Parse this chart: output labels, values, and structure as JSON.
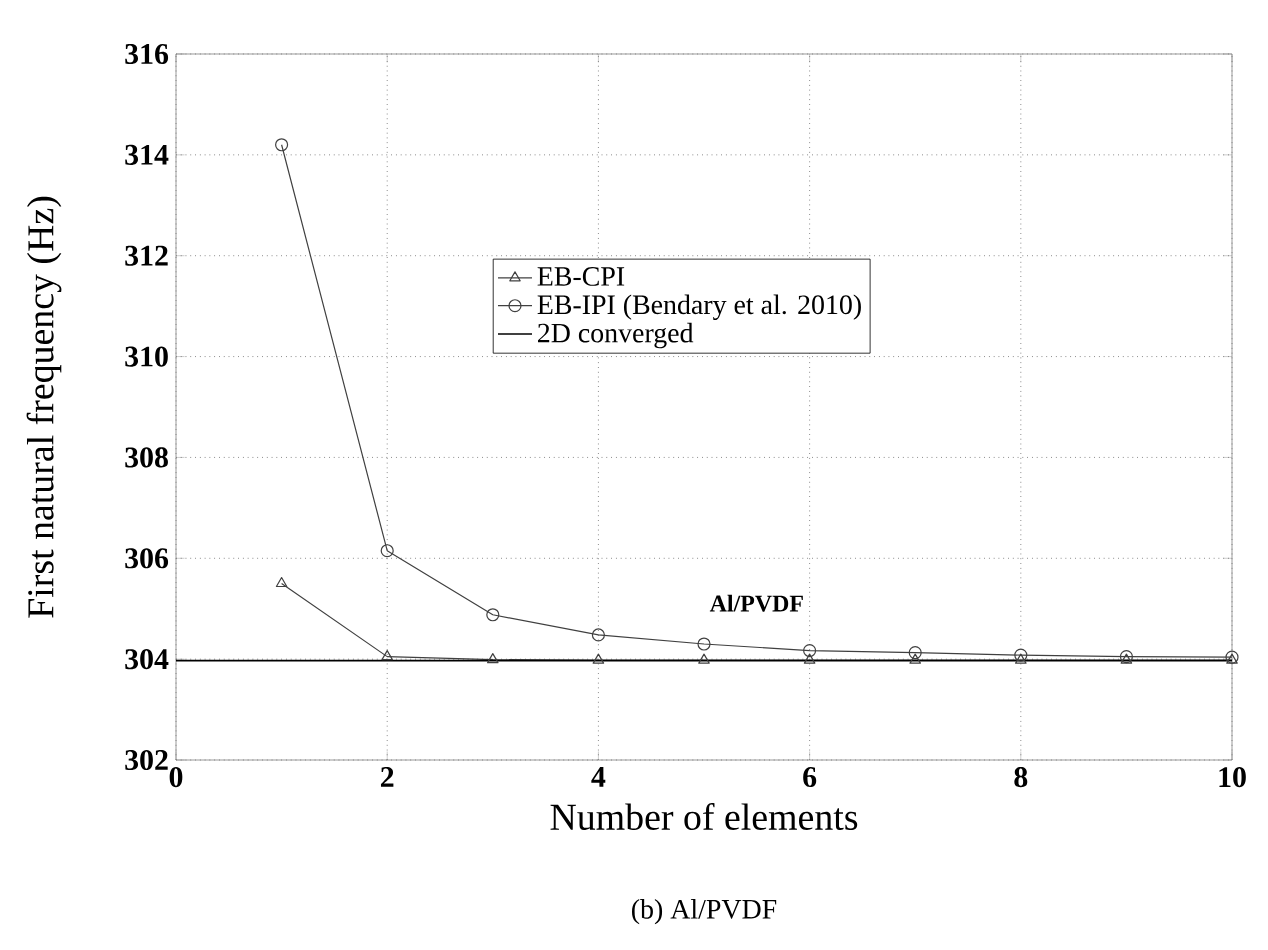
{
  "chart_data": {
    "type": "line",
    "xlabel": "Number of elements",
    "ylabel": "First natural frequency (Hz)",
    "xlim": [
      0,
      10
    ],
    "ylim": [
      302,
      316
    ],
    "xticks": [
      0,
      2,
      4,
      6,
      8,
      10
    ],
    "yticks": [
      302,
      304,
      306,
      308,
      310,
      312,
      314,
      316
    ],
    "grid": true,
    "legend": "right",
    "line_style": "solid",
    "series": [
      {
        "name": "EB-CPI",
        "color": "#404040",
        "marker": "triangle",
        "x": [
          1,
          2,
          3,
          4,
          5,
          6,
          7,
          8,
          9,
          10
        ],
        "values": [
          305.5,
          304.05,
          303.99,
          303.98,
          303.98,
          303.98,
          303.98,
          303.98,
          303.98,
          303.98
        ]
      },
      {
        "name": "EB-IPI (Bendary et al. 2010)",
        "color": "#404040",
        "marker": "circle",
        "x": [
          1,
          2,
          3,
          4,
          5,
          6,
          7,
          8,
          9,
          10
        ],
        "values": [
          314.2,
          306.15,
          304.88,
          304.48,
          304.3,
          304.17,
          304.13,
          304.08,
          304.05,
          304.04
        ]
      },
      {
        "name": "2D converged",
        "color": "#000000",
        "marker": "none",
        "x": [
          0,
          10
        ],
        "values": [
          303.97,
          303.97
        ]
      }
    ],
    "annotations": [
      "Al/PVDF",
      "(b) Al/PVDF"
    ]
  }
}
